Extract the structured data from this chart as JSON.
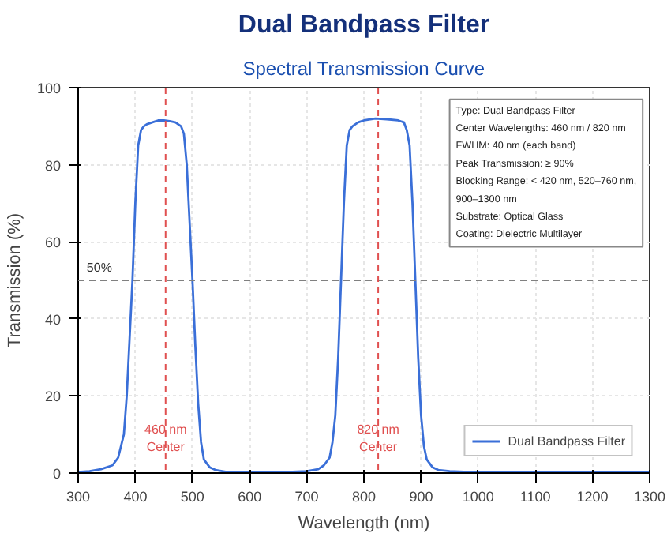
{
  "chart_data": {
    "type": "line",
    "title": "Dual Bandpass Filter",
    "subtitle": "Spectral Transmission Curve",
    "xlabel": "Wavelength (nm)",
    "ylabel": "Transmission (%)",
    "x": [
      300,
      320,
      340,
      360,
      370,
      380,
      385,
      390,
      395,
      400,
      405,
      410,
      415,
      420,
      430,
      440,
      450,
      460,
      470,
      480,
      485,
      490,
      495,
      500,
      505,
      510,
      515,
      520,
      530,
      540,
      560,
      600,
      650,
      700,
      720,
      730,
      740,
      745,
      750,
      755,
      760,
      765,
      770,
      775,
      780,
      790,
      800,
      820,
      840,
      860,
      870,
      875,
      880,
      885,
      890,
      895,
      900,
      905,
      910,
      920,
      930,
      950,
      1000,
      1050,
      1100,
      1150,
      1200,
      1250,
      1300
    ],
    "series": [
      {
        "name": "Dual Bandpass Filter",
        "color": "#3a6fd8",
        "values": [
          0.3,
          0.5,
          1,
          2,
          4,
          10,
          20,
          35,
          50,
          70,
          85,
          89,
          90,
          90.5,
          91,
          91.5,
          91.5,
          91.3,
          91,
          90,
          88,
          80,
          65,
          50,
          33,
          18,
          8,
          3.5,
          1.5,
          0.8,
          0.3,
          0.2,
          0.2,
          0.5,
          1,
          2,
          4,
          8,
          15,
          30,
          50,
          70,
          85,
          89,
          90,
          91,
          91.5,
          92,
          91.8,
          91.5,
          91,
          89,
          85,
          70,
          50,
          30,
          15,
          7,
          3.5,
          1.5,
          0.8,
          0.5,
          0.2,
          0.1,
          0.1,
          0.1,
          0.1,
          0.1,
          0.1
        ]
      }
    ],
    "xlim": [
      300,
      1300
    ],
    "ylim": [
      0,
      100
    ],
    "xticks": [
      300,
      400,
      500,
      600,
      700,
      800,
      900,
      1000,
      1100,
      1200,
      1300
    ],
    "yticks": [
      0,
      20,
      40,
      60,
      80,
      100
    ],
    "grid": true,
    "legend": "bottom right",
    "line_style": "solid",
    "marker": "none",
    "ref_lines": [
      {
        "axis": "y",
        "value": 50,
        "label": "50%",
        "color": "#808080",
        "line_style": "dashed"
      },
      {
        "axis": "x",
        "value": 453,
        "label": "460 nm\nCenter",
        "color": "#e05050",
        "line_style": "dashed"
      },
      {
        "axis": "x",
        "value": 825,
        "label": "820 nm\nCenter",
        "color": "#e05050",
        "line_style": "dashed"
      }
    ],
    "annotations": [
      "Type: Dual Bandpass Filter",
      "Center Wavelengths: 460 nm / 820 nm",
      "FWHM: 40 nm (each band)",
      "Peak Transmission: ≥ 90%",
      "Blocking Range: < 420 nm, 520–760 nm,",
      "                    900–1300 nm",
      "Substrate: Optical Glass",
      "Coating: Dielectric Multilayer"
    ]
  }
}
